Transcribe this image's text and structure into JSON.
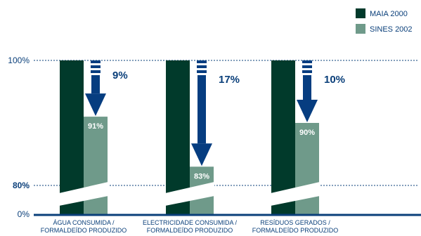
{
  "chart_data": {
    "type": "bar",
    "categories": [
      [
        "ÁGUA CONSUMIDA /",
        "FORMALDEÍDO PRODUZIDO"
      ],
      [
        "ELECTRICIDADE CONSUMIDA /",
        "FORMALDEÍDO PRODUZIDO"
      ],
      [
        "RESÍDUOS GERADOS /",
        "FORMALDEÍDO PRODUZIDO"
      ]
    ],
    "series": [
      {
        "name": "MAIA 2000",
        "values": [
          100,
          100,
          100
        ],
        "color": "#013a2b"
      },
      {
        "name": "SINES 2002",
        "values": [
          91,
          83,
          90
        ],
        "color": "#6f9a8a"
      }
    ],
    "value_labels": [
      "91%",
      "83%",
      "90%"
    ],
    "reductions": [
      "9%",
      "17%",
      "10%"
    ],
    "y_ticks": [
      {
        "value": 0,
        "label": "0%"
      },
      {
        "value": 80,
        "label": "80%"
      },
      {
        "value": 100,
        "label": "100%"
      }
    ],
    "ylim": [
      0,
      100
    ],
    "axis_break": true,
    "legend_position": "top-right",
    "arrow_color": "#063d80",
    "axis_color": "#0a3f7a"
  }
}
